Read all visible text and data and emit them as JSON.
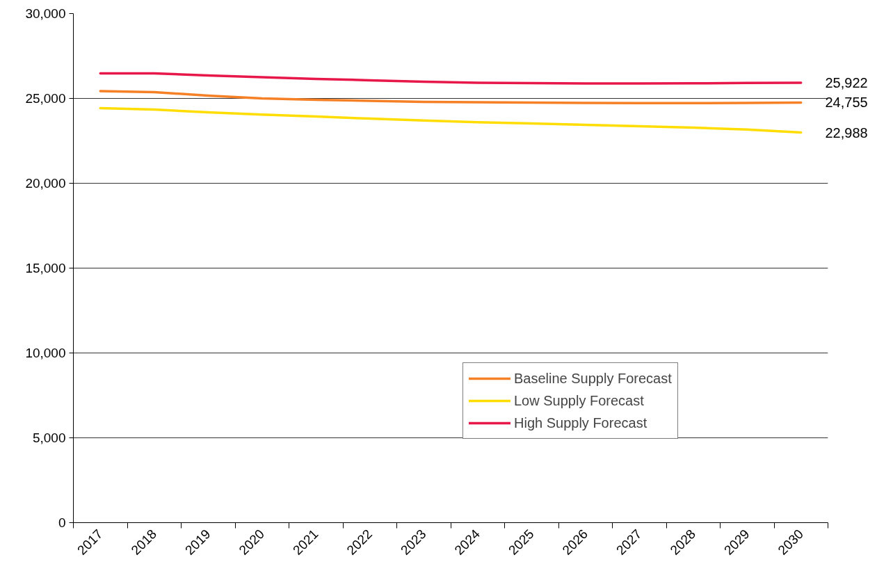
{
  "chart_data": {
    "type": "line",
    "categories": [
      "2017",
      "2018",
      "2019",
      "2020",
      "2021",
      "2022",
      "2023",
      "2024",
      "2025",
      "2026",
      "2027",
      "2028",
      "2029",
      "2030"
    ],
    "series": [
      {
        "name": "Baseline Supply Forecast",
        "color": "#f58025",
        "values": [
          25430,
          25370,
          25160,
          25000,
          24920,
          24860,
          24800,
          24770,
          24750,
          24730,
          24720,
          24720,
          24730,
          24755
        ],
        "value_labels": [
          null,
          null,
          null,
          null,
          null,
          null,
          null,
          null,
          null,
          null,
          null,
          null,
          null,
          "24,755"
        ]
      },
      {
        "name": "Low Supply Forecast",
        "color": "#ffdd00",
        "values": [
          24430,
          24340,
          24180,
          24050,
          23930,
          23810,
          23700,
          23600,
          23520,
          23440,
          23360,
          23280,
          23170,
          22988
        ],
        "value_labels": [
          null,
          null,
          null,
          null,
          null,
          null,
          null,
          null,
          null,
          null,
          null,
          null,
          null,
          "22,988"
        ]
      },
      {
        "name": "High Supply Forecast",
        "color": "#e8174a",
        "values": [
          26480,
          26480,
          26350,
          26250,
          26150,
          26070,
          25980,
          25920,
          25900,
          25880,
          25880,
          25890,
          25910,
          25922
        ],
        "value_labels": [
          null,
          null,
          null,
          null,
          null,
          null,
          null,
          null,
          null,
          null,
          null,
          null,
          null,
          "25,922"
        ]
      }
    ],
    "ylim": [
      0,
      30000
    ],
    "yticks": [
      {
        "value": 0,
        "label": "0"
      },
      {
        "value": 5000,
        "label": "5,000"
      },
      {
        "value": 10000,
        "label": "10,000"
      },
      {
        "value": 15000,
        "label": "15,000"
      },
      {
        "value": 20000,
        "label": "20,000"
      },
      {
        "value": 25000,
        "label": "25,000"
      },
      {
        "value": 30000,
        "label": "30,000"
      }
    ],
    "grid": "y",
    "legend": "bottom right",
    "line_style": "solid",
    "marker": "none"
  }
}
